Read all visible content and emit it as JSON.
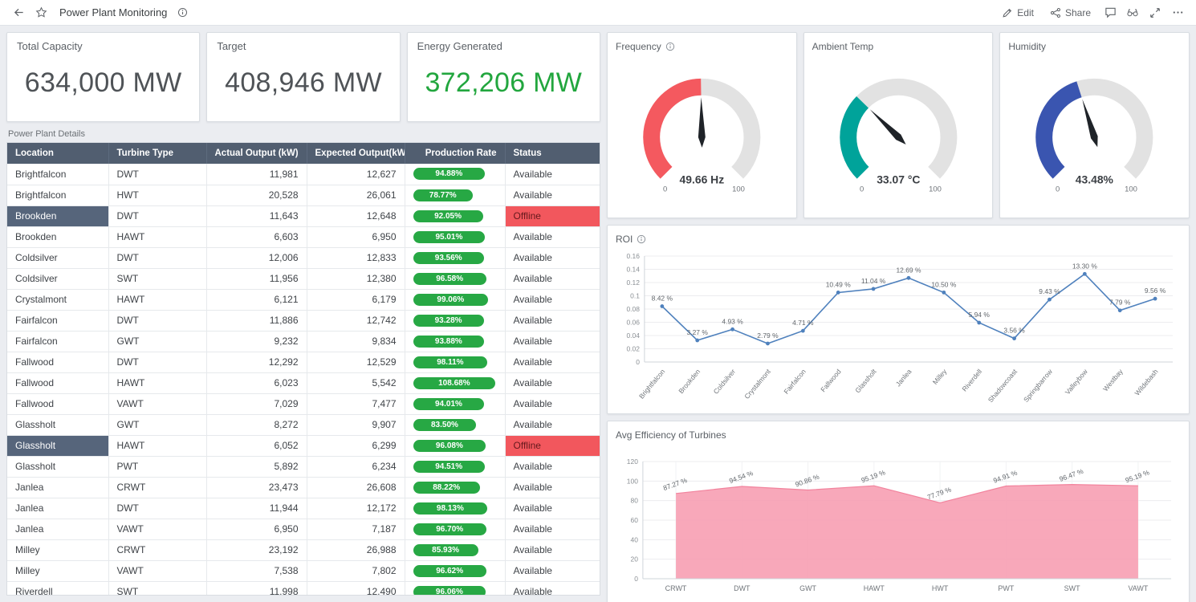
{
  "topbar": {
    "title": "Power Plant Monitoring",
    "edit_label": "Edit",
    "share_label": "Share",
    "left_icons": [
      "back-arrow-icon",
      "star-icon",
      "info-icon"
    ],
    "right_icons": [
      "pencil-icon",
      "share-icon",
      "comment-icon",
      "views-icon",
      "fullscreen-icon",
      "more-icon"
    ]
  },
  "kpis": [
    {
      "label": "Total Capacity",
      "value": "634,000 MW",
      "value_color": "#4f5357"
    },
    {
      "label": "Target",
      "value": "408,946 MW",
      "value_color": "#4f5357"
    },
    {
      "label": "Energy Generated",
      "value": "372,206 MW",
      "value_color": "#22a63e"
    }
  ],
  "power_plant_details": {
    "section_label": "Power Plant Details",
    "columns": [
      "Location",
      "Turbine Type",
      "Actual Output (kW)",
      "Expected Output(kW)",
      "Production Rate",
      "Status"
    ],
    "rows": [
      {
        "location": "Brightfalcon",
        "turbine": "DWT",
        "actual": "11,981",
        "expected": "12,627",
        "rate": "94.88%",
        "rate_value": 94.88,
        "status": "Available",
        "selected": false
      },
      {
        "location": "Brightfalcon",
        "turbine": "HWT",
        "actual": "20,528",
        "expected": "26,061",
        "rate": "78.77%",
        "rate_value": 78.77,
        "status": "Available",
        "selected": false
      },
      {
        "location": "Brookden",
        "turbine": "DWT",
        "actual": "11,643",
        "expected": "12,648",
        "rate": "92.05%",
        "rate_value": 92.05,
        "status": "Offline",
        "selected": true
      },
      {
        "location": "Brookden",
        "turbine": "HAWT",
        "actual": "6,603",
        "expected": "6,950",
        "rate": "95.01%",
        "rate_value": 95.01,
        "status": "Available",
        "selected": false
      },
      {
        "location": "Coldsilver",
        "turbine": "DWT",
        "actual": "12,006",
        "expected": "12,833",
        "rate": "93.56%",
        "rate_value": 93.56,
        "status": "Available",
        "selected": false
      },
      {
        "location": "Coldsilver",
        "turbine": "SWT",
        "actual": "11,956",
        "expected": "12,380",
        "rate": "96.58%",
        "rate_value": 96.58,
        "status": "Available",
        "selected": false
      },
      {
        "location": "Crystalmont",
        "turbine": "HAWT",
        "actual": "6,121",
        "expected": "6,179",
        "rate": "99.06%",
        "rate_value": 99.06,
        "status": "Available",
        "selected": false
      },
      {
        "location": "Fairfalcon",
        "turbine": "DWT",
        "actual": "11,886",
        "expected": "12,742",
        "rate": "93.28%",
        "rate_value": 93.28,
        "status": "Available",
        "selected": false
      },
      {
        "location": "Fairfalcon",
        "turbine": "GWT",
        "actual": "9,232",
        "expected": "9,834",
        "rate": "93.88%",
        "rate_value": 93.88,
        "status": "Available",
        "selected": false
      },
      {
        "location": "Fallwood",
        "turbine": "DWT",
        "actual": "12,292",
        "expected": "12,529",
        "rate": "98.11%",
        "rate_value": 98.11,
        "status": "Available",
        "selected": false
      },
      {
        "location": "Fallwood",
        "turbine": "HAWT",
        "actual": "6,023",
        "expected": "5,542",
        "rate": "108.68%",
        "rate_value": 108.68,
        "status": "Available",
        "selected": false
      },
      {
        "location": "Fallwood",
        "turbine": "VAWT",
        "actual": "7,029",
        "expected": "7,477",
        "rate": "94.01%",
        "rate_value": 94.01,
        "status": "Available",
        "selected": false
      },
      {
        "location": "Glassholt",
        "turbine": "GWT",
        "actual": "8,272",
        "expected": "9,907",
        "rate": "83.50%",
        "rate_value": 83.5,
        "status": "Available",
        "selected": false
      },
      {
        "location": "Glassholt",
        "turbine": "HAWT",
        "actual": "6,052",
        "expected": "6,299",
        "rate": "96.08%",
        "rate_value": 96.08,
        "status": "Offline",
        "selected": true
      },
      {
        "location": "Glassholt",
        "turbine": "PWT",
        "actual": "5,892",
        "expected": "6,234",
        "rate": "94.51%",
        "rate_value": 94.51,
        "status": "Available",
        "selected": false
      },
      {
        "location": "Janlea",
        "turbine": "CRWT",
        "actual": "23,473",
        "expected": "26,608",
        "rate": "88.22%",
        "rate_value": 88.22,
        "status": "Available",
        "selected": false
      },
      {
        "location": "Janlea",
        "turbine": "DWT",
        "actual": "11,944",
        "expected": "12,172",
        "rate": "98.13%",
        "rate_value": 98.13,
        "status": "Available",
        "selected": false
      },
      {
        "location": "Janlea",
        "turbine": "VAWT",
        "actual": "6,950",
        "expected": "7,187",
        "rate": "96.70%",
        "rate_value": 96.7,
        "status": "Available",
        "selected": false
      },
      {
        "location": "Milley",
        "turbine": "CRWT",
        "actual": "23,192",
        "expected": "26,988",
        "rate": "85.93%",
        "rate_value": 85.93,
        "status": "Available",
        "selected": false
      },
      {
        "location": "Milley",
        "turbine": "VAWT",
        "actual": "7,538",
        "expected": "7,802",
        "rate": "96.62%",
        "rate_value": 96.62,
        "status": "Available",
        "selected": false
      },
      {
        "location": "Riverdell",
        "turbine": "SWT",
        "actual": "11,998",
        "expected": "12,490",
        "rate": "96.06%",
        "rate_value": 96.06,
        "status": "Available",
        "selected": false
      }
    ]
  },
  "gauges": [
    {
      "title": "Frequency",
      "has_info": true,
      "value": 49.66,
      "display": "49.66 Hz",
      "min_label": "0",
      "max_label": "100",
      "color": "#f4595f"
    },
    {
      "title": "Ambient Temp",
      "has_info": false,
      "value": 33.07,
      "display": "33.07 °C",
      "min_label": "0",
      "max_label": "100",
      "color": "#00a39a"
    },
    {
      "title": "Humidity",
      "has_info": false,
      "value": 43.48,
      "display": "43.48%",
      "min_label": "0",
      "max_label": "100",
      "color": "#3a55b0"
    }
  ],
  "chart_data": [
    {
      "type": "line",
      "title": "ROI",
      "has_info": true,
      "categories": [
        "Brightfalcon",
        "Brookden",
        "Coldsilver",
        "Crystalmont",
        "Fairfalcon",
        "Fallwood",
        "Glassholt",
        "Janlea",
        "Milley",
        "Riverdell",
        "Shadowcoast",
        "Springbarrow",
        "Valleybow",
        "Westbay",
        "Wildebash"
      ],
      "values": [
        0.0842,
        0.0327,
        0.0493,
        0.0279,
        0.0471,
        0.1049,
        0.1104,
        0.1269,
        0.105,
        0.0594,
        0.0356,
        0.0943,
        0.133,
        0.0779,
        0.0956
      ],
      "point_labels": [
        "8.42 %",
        "3.27 %",
        "4.93 %",
        "2.79 %",
        "4.71 %",
        "10.49 %",
        "11.04 %",
        "12.69 %",
        "10.50 %",
        "5.94 %",
        "3.56 %",
        "9.43 %",
        "13.30 %",
        "7.79 %",
        "9.56 %"
      ],
      "ylim": [
        0,
        0.16
      ],
      "yticks": [
        "0",
        "0.02",
        "0.04",
        "0.06",
        "0.08",
        "0.1",
        "0.12",
        "0.14",
        "0.16"
      ],
      "line_color": "#4f81bd",
      "grid": true,
      "legend": "none"
    },
    {
      "type": "area",
      "title": "Avg Efficiency of Turbines",
      "has_info": false,
      "categories": [
        "CRWT",
        "DWT",
        "GWT",
        "HAWT",
        "HWT",
        "PWT",
        "SWT",
        "VAWT"
      ],
      "values": [
        87.27,
        94.54,
        90.86,
        95.19,
        77.79,
        94.91,
        96.47,
        95.19
      ],
      "point_labels": [
        "87.27 %",
        "94.54 %",
        "90.86 %",
        "95.19 %",
        "77.79 %",
        "94.91 %",
        "96.47 %",
        "95.19 %"
      ],
      "ylim": [
        0,
        120
      ],
      "yticks": [
        "0",
        "20",
        "40",
        "60",
        "80",
        "100",
        "120"
      ],
      "area_color": "#f79fb3",
      "line_color": "#f2839d",
      "grid": true,
      "legend": "none"
    }
  ],
  "colors": {
    "pill_green": "#27a844",
    "offline_bg": "#f2575d",
    "offline_text": "#64191d",
    "selected_cell_bg": "#56657b",
    "table_header_bg": "#515e70",
    "gauge_track": "#e2e2e2",
    "needle": "#1f2328"
  }
}
